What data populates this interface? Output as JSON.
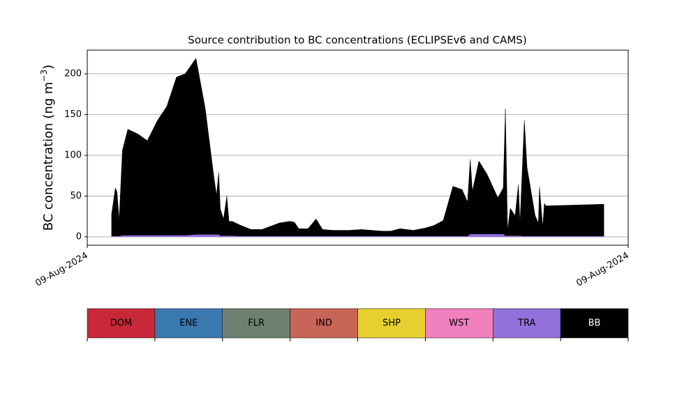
{
  "chart_data": {
    "type": "stacked_area",
    "title": "Source contribution to BC concentrations (ECLIPSEv6 and CAMS)",
    "ylabel": {
      "text": "BC concentration (ng m",
      "sup": "−3",
      "end": ")"
    },
    "xlim": [
      0,
      100
    ],
    "xticks": [
      {
        "value": 0,
        "label": "09-Aug-2024"
      },
      {
        "value": 100,
        "label": "09-Aug-2024"
      }
    ],
    "ylim": [
      -10.3,
      229
    ],
    "yticks": [
      0,
      50,
      100,
      150,
      200
    ],
    "grid": true,
    "x": [
      4.5,
      5.2,
      5.5,
      5.9,
      6.5,
      7.5,
      9.4,
      11.1,
      13.0,
      14.7,
      16.5,
      18.1,
      20.1,
      21.8,
      23.4,
      23.9,
      24.3,
      24.6,
      25.2,
      25.8,
      26.2,
      26.8,
      28.4,
      30.3,
      32.3,
      35.5,
      37.4,
      38.3,
      39.1,
      40.8,
      42.3,
      43.5,
      45.4,
      48.4,
      50.7,
      54.5,
      56.1,
      57.8,
      60.3,
      62.6,
      64.1,
      65.8,
      67.6,
      69.3,
      70.3,
      70.8,
      71.2,
      72.4,
      73.9,
      75.9,
      76.9,
      77.3,
      77.7,
      78.2,
      79.1,
      79.7,
      80.0,
      80.8,
      81.3,
      82.8,
      83.4,
      83.6,
      84.2,
      84.5,
      84.8,
      95.5
    ],
    "series": [
      {
        "name": "TRA",
        "color": "#9370db",
        "values": [
          1,
          1,
          1,
          1,
          2,
          2,
          2,
          2,
          2,
          2,
          2,
          2,
          3,
          3,
          3,
          3,
          3,
          1.5,
          1.5,
          1.5,
          1.5,
          1.5,
          1,
          1,
          1,
          1,
          1,
          1,
          1,
          1,
          1,
          1,
          1,
          1,
          1,
          1,
          1,
          1,
          1,
          1,
          1,
          1,
          1,
          1,
          1,
          3.5,
          3.5,
          3.5,
          3.5,
          3.5,
          3.5,
          1.5,
          1.5,
          1.5,
          1.5,
          1.5,
          1.5,
          1,
          1,
          1,
          1,
          1,
          1,
          1,
          1,
          1
        ]
      },
      {
        "name": "BB",
        "color": "#000000",
        "values": [
          27,
          59,
          54,
          20,
          104,
          130,
          124,
          116,
          141,
          158,
          194,
          198,
          216,
          155,
          71,
          48,
          76,
          32.5,
          20.5,
          48.5,
          17.5,
          17.5,
          13,
          8,
          8,
          16,
          18,
          17,
          9,
          9,
          21,
          8,
          7,
          7,
          8,
          6,
          6,
          9,
          7,
          10,
          13,
          19,
          61,
          57,
          42,
          91.5,
          52.5,
          89.5,
          73.5,
          44.5,
          56.5,
          155.5,
          6.5,
          33.5,
          24.5,
          62.5,
          15.5,
          142,
          84,
          25,
          16,
          60,
          11,
          40,
          37,
          39
        ]
      }
    ],
    "legend": [
      {
        "name": "DOM",
        "color": "#c82838"
      },
      {
        "name": "ENE",
        "color": "#3a78b0"
      },
      {
        "name": "FLR",
        "color": "#6e8070"
      },
      {
        "name": "IND",
        "color": "#c86458"
      },
      {
        "name": "SHP",
        "color": "#e6d030"
      },
      {
        "name": "WST",
        "color": "#f080be"
      },
      {
        "name": "TRA",
        "color": "#9370db"
      },
      {
        "name": "BB",
        "color": "#000000"
      }
    ]
  }
}
